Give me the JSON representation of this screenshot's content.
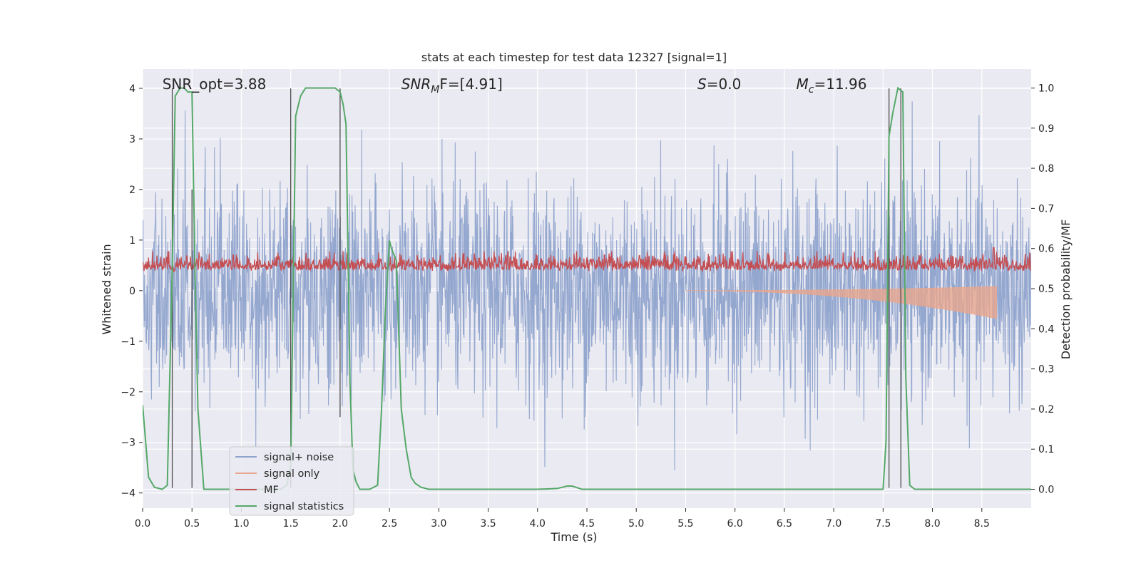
{
  "chart_data": {
    "type": "line",
    "title": "stats at each timestep for test data 12327 [signal=1]",
    "xlabel": "Time (s)",
    "ylabel": "Whitened strain",
    "y2label": "Detection probability/MF",
    "xlim": [
      0,
      9.0
    ],
    "ylim": [
      -4.3,
      4.38
    ],
    "y2lim": [
      -0.047,
      1.047
    ],
    "xticks": [
      "0.0",
      "0.5",
      "1.0",
      "1.5",
      "2.0",
      "2.5",
      "3.0",
      "3.5",
      "4.0",
      "4.5",
      "5.0",
      "5.5",
      "6.0",
      "6.5",
      "7.0",
      "7.5",
      "8.0",
      "8.5"
    ],
    "xtick_values": [
      0,
      0.5,
      1,
      1.5,
      2,
      2.5,
      3,
      3.5,
      4,
      4.5,
      5,
      5.5,
      6,
      6.5,
      7,
      7.5,
      8,
      8.5
    ],
    "yticks": [
      "−4",
      "−3",
      "−2",
      "−1",
      "0",
      "1",
      "2",
      "3",
      "4"
    ],
    "ytick_values": [
      -4,
      -3,
      -2,
      -1,
      0,
      1,
      2,
      3,
      4
    ],
    "y2ticks": [
      "0.0",
      "0.1",
      "0.2",
      "0.3",
      "0.4",
      "0.5",
      "0.6",
      "0.7",
      "0.8",
      "0.9",
      "1.0"
    ],
    "y2tick_values": [
      0,
      0.1,
      0.2,
      0.3,
      0.4,
      0.5,
      0.6,
      0.7,
      0.8,
      0.9,
      1.0
    ],
    "grid": true,
    "legend_position": "lower-left",
    "annotations": [
      {
        "text": "SNR_opt=3.88",
        "x": 0.2
      },
      {
        "text": "SNRₘF=[4.91]",
        "html_main": "SNR",
        "html_sub": "M",
        "html_tail": "F=[4.91]",
        "x": 2.62
      },
      {
        "text": "S=0.0",
        "html_main": "S",
        "html_tail": "=0.0",
        "x": 5.62
      },
      {
        "text": "Mc=11.96",
        "html_main": "M",
        "html_sub": "c",
        "html_tail": "=11.96",
        "x": 6.62
      }
    ],
    "series": [
      {
        "name": "signal+ noise",
        "color": "#8fa3cc",
        "kind": "noise",
        "amplitude": [
          -3.9,
          3.9
        ]
      },
      {
        "name": "signal only",
        "color": "#e8a68d",
        "kind": "chirp",
        "end_time": 8.65,
        "min_value": -0.55
      },
      {
        "name": "MF",
        "color": "#c44e52",
        "kind": "mf",
        "range": [
          0.06,
          0.85
        ]
      },
      {
        "name": "signal statistics",
        "color": "#55a868",
        "axis": "right",
        "x": [
          0,
          0.06,
          0.12,
          0.2,
          0.25,
          0.3,
          0.33,
          0.38,
          0.42,
          0.46,
          0.5,
          0.53,
          0.56,
          0.62,
          0.7,
          0.8,
          1.0,
          1.2,
          1.4,
          1.46,
          1.5,
          1.55,
          1.6,
          1.65,
          1.7,
          1.8,
          1.9,
          1.95,
          2.0,
          2.03,
          2.06,
          2.1,
          2.13,
          2.16,
          2.2,
          2.25,
          2.3,
          2.38,
          2.42,
          2.46,
          2.5,
          2.52,
          2.57,
          2.62,
          2.67,
          2.72,
          2.76,
          2.82,
          2.9,
          3.0,
          3.5,
          4.0,
          4.2,
          4.3,
          4.35,
          4.45,
          4.6,
          5.0,
          6.0,
          7.0,
          7.5,
          7.53,
          7.56,
          7.6,
          7.65,
          7.7,
          7.73,
          7.77,
          7.82,
          8.0,
          9.0
        ],
        "y": [
          0.21,
          0.03,
          0.005,
          0.0,
          0.01,
          0.55,
          0.98,
          1.0,
          1.0,
          0.99,
          0.99,
          0.55,
          0.2,
          0.0,
          0.0,
          0.0,
          0.0,
          0.0,
          0.0,
          0.01,
          0.06,
          0.93,
          0.98,
          1.0,
          1.0,
          1.0,
          1.0,
          1.0,
          0.99,
          0.96,
          0.91,
          0.27,
          0.05,
          0.02,
          0.0,
          0.0,
          0.0,
          0.01,
          0.2,
          0.45,
          0.62,
          0.6,
          0.57,
          0.2,
          0.1,
          0.03,
          0.015,
          0.005,
          0.0,
          0.0,
          0.0,
          0.0,
          0.002,
          0.008,
          0.008,
          0.0,
          0.0,
          0.0,
          0.0,
          0.0,
          0.0,
          0.12,
          0.88,
          0.94,
          1.0,
          0.99,
          0.28,
          0.01,
          0.0,
          0.0,
          0.0
        ]
      }
    ],
    "vertical_markers": [
      {
        "x": 0.3,
        "y_top": 4.0,
        "y_bottom": -3.9
      },
      {
        "x": 0.5,
        "y_top": 2.0,
        "y_bottom": -3.9
      },
      {
        "x": 1.5,
        "y_top": 4.0,
        "y_bottom": -3.9
      },
      {
        "x": 2.0,
        "y_top": 4.0,
        "y_bottom": -2.5
      },
      {
        "x": 7.56,
        "y_top": 4.0,
        "y_bottom": -3.9
      },
      {
        "x": 7.68,
        "y_top": 4.0,
        "y_bottom": -3.9
      }
    ]
  },
  "colors": {
    "axes_bg": "#eaeaf2",
    "grid": "#ffffff",
    "marker": "#4d4d4d"
  }
}
